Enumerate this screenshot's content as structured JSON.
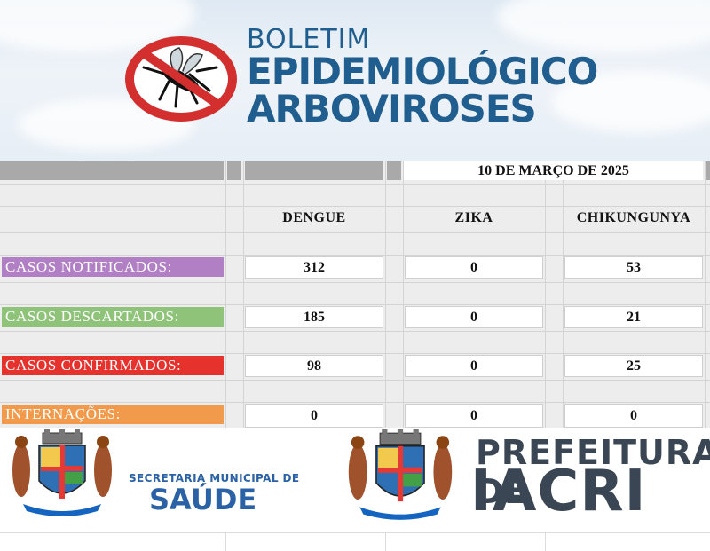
{
  "header": {
    "title_line1": "BOLETIM",
    "title_line2": "EPIDEMIOLÓGICO",
    "title_line3": "ARBOVIROSES",
    "icon": "no-mosquito-icon",
    "title_color": "#1f5e8e",
    "prohibition_color": "#d32f2f"
  },
  "table": {
    "date": "10 DE MARÇO DE 2025",
    "columns": [
      "DENGUE",
      "ZIKA",
      "CHIKUNGUNYA"
    ],
    "rows": [
      {
        "label": "CASOS NOTIFICADOS:",
        "color": "#b07fc4",
        "values": [
          "312",
          "0",
          "53"
        ]
      },
      {
        "label": "CASOS DESCARTADOS:",
        "color": "#8fc37a",
        "values": [
          "185",
          "0",
          "21"
        ]
      },
      {
        "label": "CASOS CONFIRMADOS:",
        "color": "#e5322d",
        "values": [
          "98",
          "0",
          "25"
        ]
      },
      {
        "label": "INTERNAÇÕES:",
        "color": "#f19a4b",
        "values": [
          "0",
          "0",
          "0"
        ]
      }
    ]
  },
  "footer": {
    "secretaria_line1": "SECRETARIA MUNICIPAL DE",
    "secretaria_line2": "SAÚDE",
    "prefeitura_line1": "PREFEITURA DE",
    "prefeitura_line2": "IACRI",
    "coat_of_arms_icon": "coat-of-arms-icon"
  }
}
